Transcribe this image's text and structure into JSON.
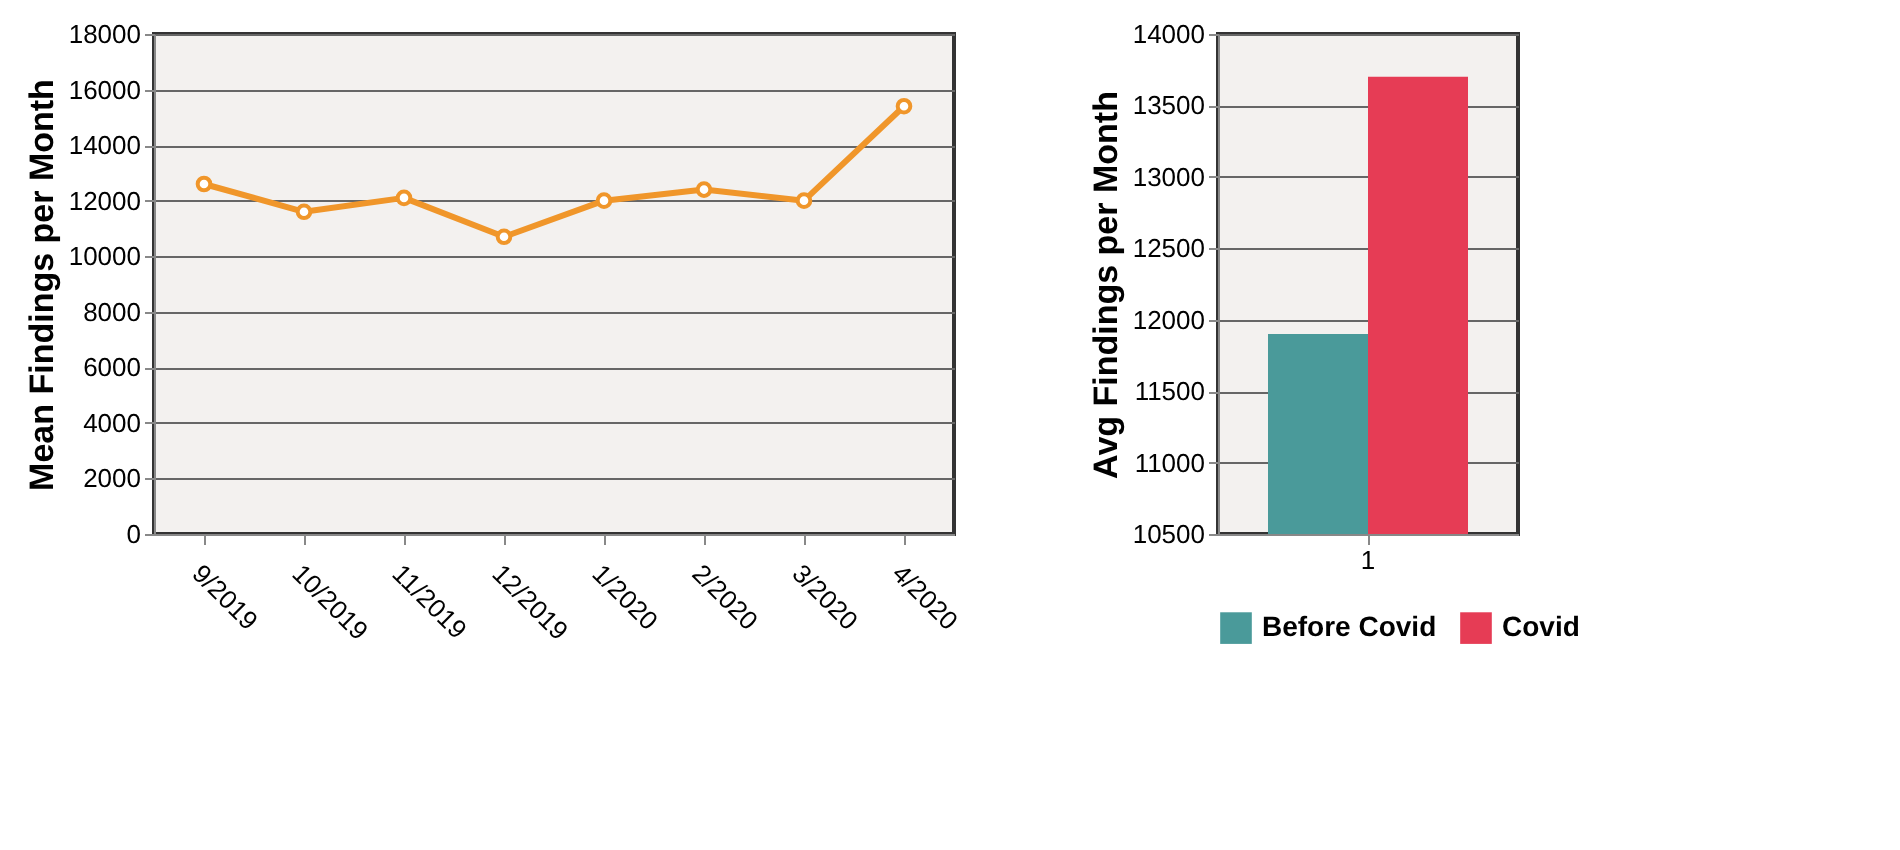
{
  "chart_data": [
    {
      "type": "line",
      "ylabel": "Mean Findings per Month",
      "categories": [
        "9/2019",
        "10/2019",
        "11/2019",
        "12/2019",
        "1/2020",
        "2/2020",
        "3/2020",
        "4/2020"
      ],
      "series": [
        {
          "color": "#f0962a",
          "values": [
            12600,
            11600,
            12100,
            10700,
            12000,
            12400,
            12000,
            15400
          ]
        }
      ],
      "ylim": [
        0,
        18000
      ],
      "yticks": [
        0,
        2000,
        4000,
        6000,
        8000,
        10000,
        12000,
        14000,
        16000,
        18000
      ],
      "grid": "y",
      "marker": "circle",
      "legend": false
    },
    {
      "type": "bar",
      "ylabel": "Avg Findings per Month",
      "categories": [
        "1"
      ],
      "series": [
        {
          "name": "Before Covid",
          "color": "#4a9a9a",
          "values": [
            11900
          ]
        },
        {
          "name": "Covid",
          "color": "#e63c55",
          "values": [
            13700
          ]
        }
      ],
      "ylim": [
        10500,
        14000
      ],
      "yticks": [
        10500,
        11000,
        11500,
        12000,
        12500,
        13000,
        13500,
        14000
      ],
      "grid": "y",
      "legend": "bottom"
    }
  ]
}
